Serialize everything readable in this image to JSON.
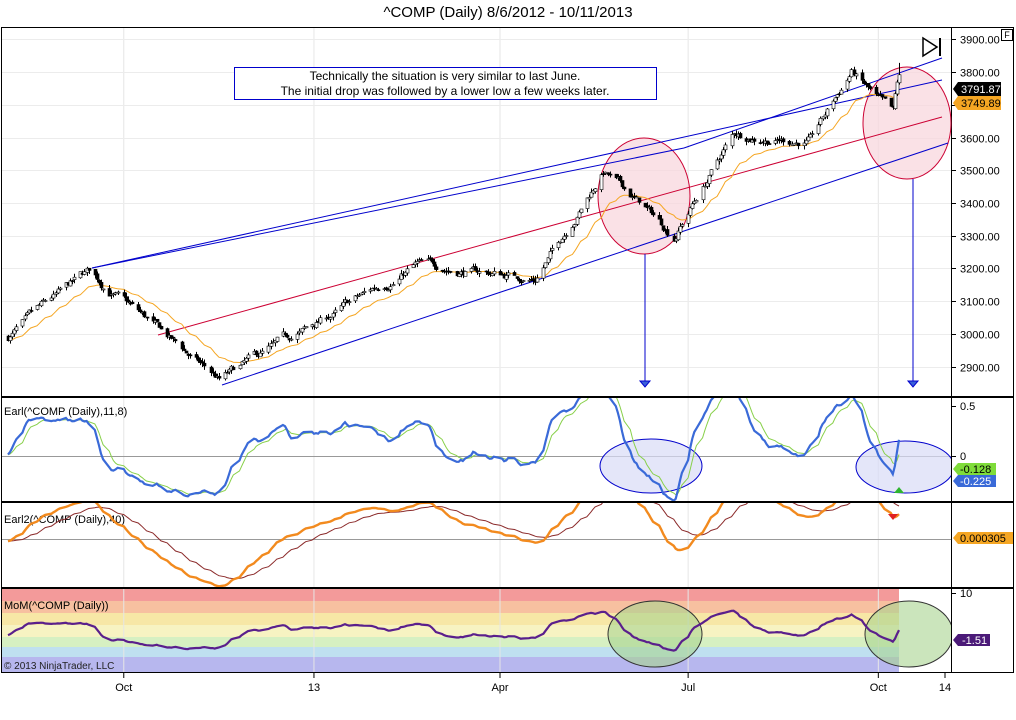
{
  "chart_title": "^COMP (Daily)  8/6/2012 - 10/11/2013",
  "watermark": "© 2013 NinjaTrader, LLC",
  "f_button": "F",
  "annotation": {
    "line1": "Technically the situation is very similar to last June.",
    "line2": "The initial drop was followed by a lower low a few weeks later."
  },
  "colors": {
    "up_candle": "#ffffff",
    "down_candle": "#000000",
    "channel_blue": "#0000cc",
    "channel_red": "#cc0033",
    "ema": "#f5a623",
    "earl_fast": "#3a6ad8",
    "earl_slow": "#88d04a",
    "earl2_fast": "#f28a1e",
    "earl2_slow": "#8b2a2a",
    "mom_line": "#5a1f8c"
  },
  "chart_data": [
    {
      "type": "candlestick",
      "title": "^COMP (Daily)  8/6/2012 - 10/11/2013",
      "x_ticks": [
        "Oct",
        "13",
        "Apr",
        "Jul",
        "Oct",
        "14"
      ],
      "y_ticks": [
        "2900.00",
        "3000.00",
        "3100.00",
        "3200.00",
        "3300.00",
        "3400.00",
        "3500.00",
        "3600.00",
        "3700.00",
        "3800.00",
        "3900.00"
      ],
      "ylim": [
        2810,
        3935
      ],
      "last_close_label": "3791.87",
      "ema_last_label": "3749.89",
      "trend_anchor_points": [
        {
          "date": "2012-08-06",
          "value": 2990
        },
        {
          "date": "2012-09-14",
          "value": 3183
        },
        {
          "date": "2012-10-10",
          "value": 3050
        },
        {
          "date": "2012-11-16",
          "value": 2855
        },
        {
          "date": "2012-12-31",
          "value": 3020
        },
        {
          "date": "2013-02-19",
          "value": 3210
        },
        {
          "date": "2013-04-18",
          "value": 3170
        },
        {
          "date": "2013-05-21",
          "value": 3500
        },
        {
          "date": "2013-06-24",
          "value": 3300
        },
        {
          "date": "2013-07-23",
          "value": 3610
        },
        {
          "date": "2013-08-29",
          "value": 3590
        },
        {
          "date": "2013-09-18",
          "value": 3800
        },
        {
          "date": "2013-10-08",
          "value": 3660
        },
        {
          "date": "2013-10-11",
          "value": 3792
        }
      ]
    },
    {
      "type": "line",
      "panel_label": "Earl(^COMP (Daily),11,8)",
      "y_ticks": [
        "0.5",
        "0"
      ],
      "ylim": [
        -0.45,
        0.55
      ],
      "last_values": {
        "slow": "-0.128",
        "fast": "-0.225"
      }
    },
    {
      "type": "line",
      "panel_label": "Earl2(^COMP (Daily),40)",
      "ylim": [
        -0.012,
        0.01
      ],
      "last_value_label": "0.000305"
    },
    {
      "type": "line",
      "panel_label": "MoM(^COMP (Daily))",
      "y_ticks": [
        "10"
      ],
      "ylim": [
        -8,
        10
      ],
      "last_value_label": "-1.51"
    }
  ]
}
